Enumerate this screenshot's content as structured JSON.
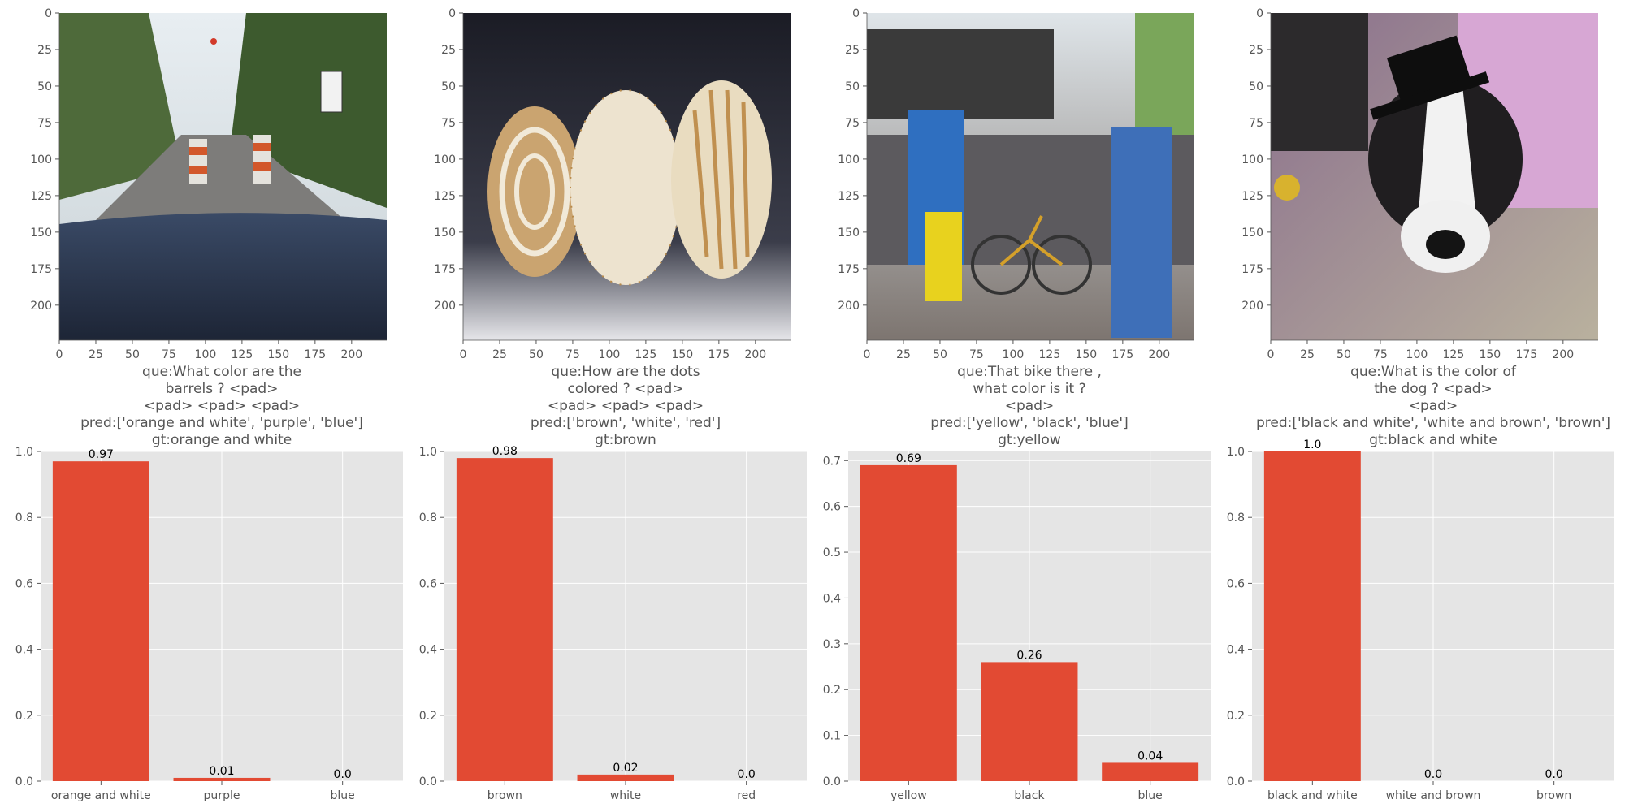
{
  "colors": {
    "bar": "#E24A33",
    "panel_bg": "#E5E5E5",
    "grid": "#FFFFFF",
    "text": "#555555"
  },
  "image_axis_ticks": [
    0,
    25,
    50,
    75,
    100,
    125,
    150,
    175,
    200
  ],
  "chart_data": [
    {
      "type": "bar",
      "image_scene": "road with orange and white barrels seen through a car windshield",
      "caption": [
        "que:What color are the",
        "barrels ? <pad>",
        "<pad> <pad> <pad>",
        "pred:['orange and white', 'purple', 'blue']",
        "gt:orange and white"
      ],
      "categories": [
        "orange and white",
        "purple",
        "blue"
      ],
      "values": [
        0.97,
        0.01,
        0.0
      ],
      "data_labels": [
        "0.97",
        "0.01",
        "0.0"
      ],
      "ylim": [
        0,
        1.0
      ],
      "yticks": [
        "0.0",
        "0.2",
        "0.4",
        "0.6",
        "0.8",
        "1.0"
      ],
      "grid": true
    },
    {
      "type": "bar",
      "image_scene": "three decorated ceramic plates on a dark background",
      "caption": [
        "que:How are the dots",
        "colored ? <pad>",
        "<pad> <pad> <pad>",
        "pred:['brown', 'white', 'red']",
        "gt:brown"
      ],
      "categories": [
        "brown",
        "white",
        "red"
      ],
      "values": [
        0.98,
        0.02,
        0.0
      ],
      "data_labels": [
        "0.98",
        "0.02",
        "0.0"
      ],
      "ylim": [
        0,
        1.0
      ],
      "yticks": [
        "0.0",
        "0.2",
        "0.4",
        "0.6",
        "0.8",
        "1.0"
      ],
      "grid": true
    },
    {
      "type": "bar",
      "image_scene": "crowd at an outdoor stage event with a person carrying a yellow bag and a bicycle",
      "caption": [
        "que:That bike there ,",
        "what color is it ?",
        "<pad>",
        "pred:['yellow', 'black', 'blue']",
        "gt:yellow"
      ],
      "categories": [
        "yellow",
        "black",
        "blue"
      ],
      "values": [
        0.69,
        0.26,
        0.04
      ],
      "data_labels": [
        "0.69",
        "0.26",
        "0.04"
      ],
      "ylim": [
        0,
        0.72
      ],
      "yticks": [
        "0.0",
        "0.1",
        "0.2",
        "0.3",
        "0.4",
        "0.5",
        "0.6",
        "0.7"
      ],
      "grid": true
    },
    {
      "type": "bar",
      "image_scene": "black and white dog wearing a small top hat",
      "caption": [
        "que:What is the color of",
        "the dog ? <pad>",
        "<pad>",
        "pred:['black and white', 'white and brown', 'brown']",
        "gt:black and white"
      ],
      "categories": [
        "black and white",
        "white and brown",
        "brown"
      ],
      "values": [
        1.0,
        0.0,
        0.0
      ],
      "data_labels": [
        "1.0",
        "0.0",
        "0.0"
      ],
      "ylim": [
        0,
        1.0
      ],
      "yticks": [
        "0.0",
        "0.2",
        "0.4",
        "0.6",
        "0.8",
        "1.0"
      ],
      "grid": true
    }
  ]
}
